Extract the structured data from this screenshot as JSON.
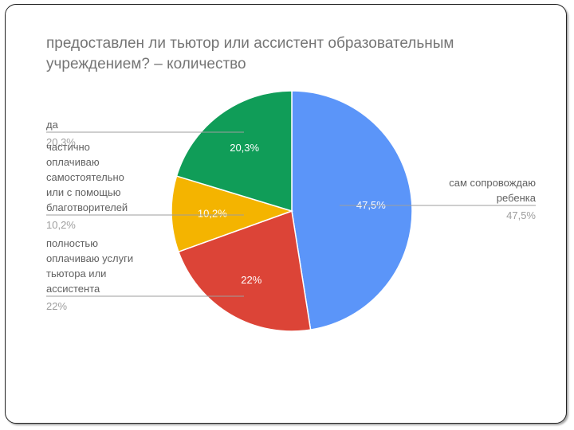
{
  "chart_data": {
    "type": "pie",
    "title": "предоставлен ли тьютор или ассистент образовательным учреждением? – количество",
    "slices": [
      {
        "label": "сам сопровождаю ребенка",
        "value": 47.5,
        "value_label": "47,5%",
        "color": "#5b95f9"
      },
      {
        "label": "полностью оплачиваю услуги тьютора или ассистента",
        "value": 22,
        "value_label": "22%",
        "color": "#dc4437"
      },
      {
        "label": "частично оплачиваю самостоятельно или с помощью благотворителей",
        "value": 10.2,
        "value_label": "10,2%",
        "color": "#f4b400"
      },
      {
        "label": "да",
        "value": 20.3,
        "value_label": "20,3%",
        "color": "#109d58"
      }
    ],
    "legend": "callouts"
  }
}
